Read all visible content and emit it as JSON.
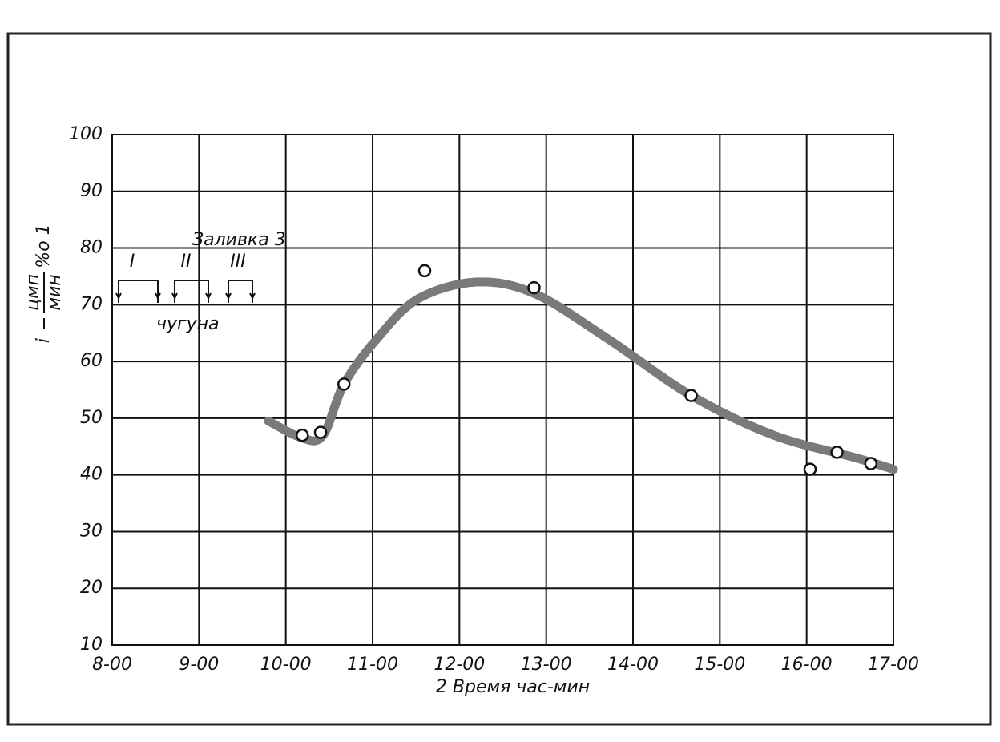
{
  "chart_data": {
    "type": "line",
    "x_label": "2 Время час-мин",
    "y_label": {
      "prefix": "i",
      "numerator": "цмп",
      "denominator": "мин",
      "suffix": "%о 1"
    },
    "annotations": {
      "title": "Заливка 3",
      "stages": [
        "I",
        "II",
        "III"
      ],
      "bottom": "чугуна"
    },
    "xlim": [
      8,
      17
    ],
    "xticks": [
      {
        "value": 8,
        "label": "8-00"
      },
      {
        "value": 9,
        "label": "9-00"
      },
      {
        "value": 10,
        "label": "10-00"
      },
      {
        "value": 11,
        "label": "11-00"
      },
      {
        "value": 12,
        "label": "12-00"
      },
      {
        "value": 13,
        "label": "13-00"
      },
      {
        "value": 14,
        "label": "14-00"
      },
      {
        "value": 15,
        "label": "15-00"
      },
      {
        "value": 16,
        "label": "16-00"
      },
      {
        "value": 17,
        "label": "17-00"
      }
    ],
    "ylim": [
      10,
      100
    ],
    "yticks": [
      10,
      20,
      30,
      40,
      50,
      60,
      70,
      80,
      90,
      100
    ],
    "grid": true,
    "series": [
      {
        "style": "markers",
        "color": "#111111",
        "x": [
          10.19,
          10.4,
          10.67,
          11.6,
          12.86,
          14.67,
          16.04,
          16.35,
          16.74
        ],
        "values": [
          47,
          47.5,
          56,
          76,
          73,
          54,
          41,
          44,
          42
        ]
      },
      {
        "style": "curve",
        "color": "#7a7a7a",
        "x": [
          9.8,
          10.19,
          10.43,
          10.67,
          11.05,
          11.52,
          12.19,
          12.86,
          13.71,
          14.67,
          15.62,
          16.57,
          17
        ],
        "values": [
          49.5,
          46.5,
          47,
          56,
          64,
          71,
          74,
          72,
          64,
          54,
          47,
          43,
          41
        ]
      }
    ]
  }
}
